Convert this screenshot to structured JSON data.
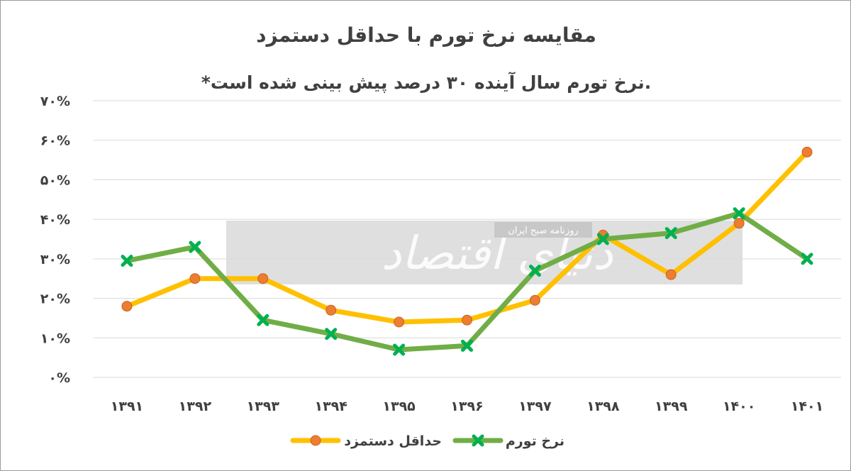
{
  "chart_data": {
    "type": "line",
    "title": "مقایسه نرخ تورم با حداقل دستمزد",
    "subtitle": "*نرخ تورم سال آینده ۳۰ درصد پیش بینی شده است.",
    "categories": [
      "۱۳۹۱",
      "۱۳۹۲",
      "۱۳۹۳",
      "۱۳۹۴",
      "۱۳۹۵",
      "۱۳۹۶",
      "۱۳۹۷",
      "۱۳۹۸",
      "۱۳۹۹",
      "۱۴۰۰",
      "۱۴۰۱"
    ],
    "ylim": [
      0,
      70
    ],
    "y_ticks": [
      0,
      10,
      20,
      30,
      40,
      50,
      60,
      70
    ],
    "y_tick_labels": [
      "۰%",
      "۱۰%",
      "۲۰%",
      "۳۰%",
      "۴۰%",
      "۵۰%",
      "۶۰%",
      "۷۰%"
    ],
    "grid": true,
    "legend_position": "bottom",
    "series": [
      {
        "name": "حداقل دستمزد",
        "color": "#FFC000",
        "marker": "circle",
        "marker_color": "#ED7D31",
        "values": [
          18,
          25,
          25,
          17,
          14,
          14.5,
          19.5,
          36,
          26,
          39,
          57
        ]
      },
      {
        "name": "نرخ تورم",
        "color": "#70AD47",
        "marker": "x",
        "marker_color": "#00B050",
        "values": [
          29.5,
          33,
          14.5,
          11,
          7,
          8,
          27,
          35,
          36.5,
          41.5,
          30
        ]
      }
    ]
  },
  "watermark": {
    "logo_text": "دنیای اقتصاد",
    "tagline": "روزنامه صبح ایران"
  }
}
